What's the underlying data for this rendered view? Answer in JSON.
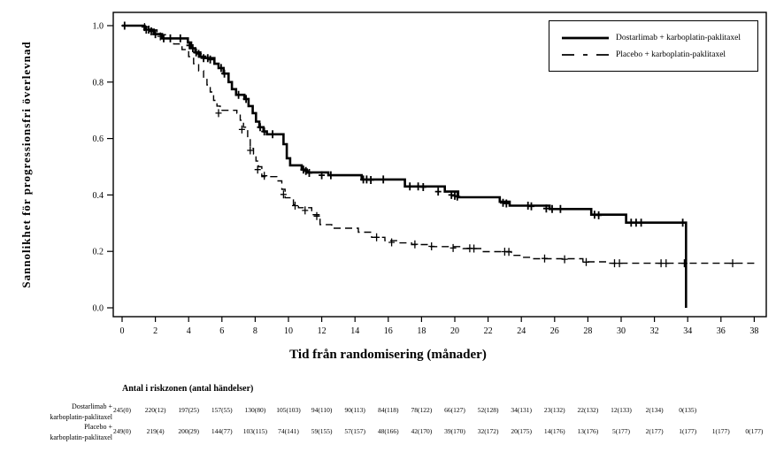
{
  "figure": {
    "y_axis_title": "Sannolikhet för progressionsfri  överlevnad",
    "x_axis_title": "Tid från randomisering  (månader)"
  },
  "legend": {
    "items": [
      {
        "label": "Dostarlimab + karboplatin-paklitaxel",
        "style": "solid"
      },
      {
        "label": "Placebo + karboplatin-paklitaxel",
        "style": "dashed"
      }
    ]
  },
  "colors": {
    "line": "#000000",
    "background": "#ffffff"
  },
  "chart_data": {
    "type": "line",
    "subtype": "kaplan-meier-step",
    "title": "",
    "xlabel": "Tid från randomisering (månader)",
    "ylabel": "Sannolikhet för progressionsfri överlevnad",
    "xlim": [
      0,
      38
    ],
    "ylim": [
      0.0,
      1.0
    ],
    "x_ticks": [
      0,
      2,
      4,
      6,
      8,
      10,
      12,
      14,
      16,
      18,
      20,
      22,
      24,
      26,
      28,
      30,
      32,
      34,
      36,
      38
    ],
    "y_ticks": [
      "0.0",
      "0.2",
      "0.4",
      "0.6",
      "0.8",
      "1.0"
    ],
    "grid": false,
    "legend_position": "top-right",
    "series": [
      {
        "name": "Dostarlimab + karboplatin-paklitaxel",
        "line": "solid",
        "steps": [
          [
            0,
            1.0
          ],
          [
            1.35,
            0.986
          ],
          [
            1.9,
            0.97
          ],
          [
            2.4,
            0.955
          ],
          [
            3.95,
            0.94
          ],
          [
            4.15,
            0.92
          ],
          [
            4.4,
            0.905
          ],
          [
            4.7,
            0.89
          ],
          [
            5.0,
            0.885
          ],
          [
            5.55,
            0.865
          ],
          [
            5.8,
            0.85
          ],
          [
            6.1,
            0.83
          ],
          [
            6.4,
            0.8
          ],
          [
            6.6,
            0.775
          ],
          [
            6.85,
            0.755
          ],
          [
            7.35,
            0.74
          ],
          [
            7.6,
            0.715
          ],
          [
            7.85,
            0.69
          ],
          [
            8.05,
            0.66
          ],
          [
            8.25,
            0.64
          ],
          [
            8.5,
            0.625
          ],
          [
            8.7,
            0.615
          ],
          [
            9.7,
            0.58
          ],
          [
            9.9,
            0.53
          ],
          [
            10.1,
            0.505
          ],
          [
            10.8,
            0.49
          ],
          [
            11.1,
            0.48
          ],
          [
            12.4,
            0.47
          ],
          [
            14.4,
            0.455
          ],
          [
            17.0,
            0.43
          ],
          [
            19.4,
            0.412
          ],
          [
            20.2,
            0.392
          ],
          [
            22.7,
            0.376
          ],
          [
            23.3,
            0.362
          ],
          [
            25.7,
            0.35
          ],
          [
            28.2,
            0.33
          ],
          [
            30.3,
            0.302
          ],
          [
            33.9,
            0.0
          ]
        ],
        "censors": [
          [
            0.15,
            1.0
          ],
          [
            1.45,
            0.986
          ],
          [
            1.6,
            0.986
          ],
          [
            1.75,
            0.98
          ],
          [
            2.0,
            0.97
          ],
          [
            2.5,
            0.955
          ],
          [
            2.9,
            0.955
          ],
          [
            3.5,
            0.955
          ],
          [
            4.05,
            0.93
          ],
          [
            4.25,
            0.92
          ],
          [
            4.45,
            0.905
          ],
          [
            4.6,
            0.9
          ],
          [
            4.9,
            0.885
          ],
          [
            5.15,
            0.885
          ],
          [
            5.3,
            0.88
          ],
          [
            5.95,
            0.85
          ],
          [
            6.15,
            0.83
          ],
          [
            7.0,
            0.755
          ],
          [
            7.45,
            0.74
          ],
          [
            8.3,
            0.64
          ],
          [
            8.55,
            0.625
          ],
          [
            9.05,
            0.615
          ],
          [
            10.9,
            0.49
          ],
          [
            11.05,
            0.485
          ],
          [
            11.25,
            0.478
          ],
          [
            12.0,
            0.47
          ],
          [
            12.55,
            0.47
          ],
          [
            14.5,
            0.455
          ],
          [
            14.7,
            0.455
          ],
          [
            14.95,
            0.453
          ],
          [
            15.7,
            0.455
          ],
          [
            17.3,
            0.43
          ],
          [
            17.8,
            0.43
          ],
          [
            18.1,
            0.428
          ],
          [
            19.0,
            0.412
          ],
          [
            19.8,
            0.4
          ],
          [
            20.0,
            0.397
          ],
          [
            20.15,
            0.394
          ],
          [
            22.9,
            0.372
          ],
          [
            23.1,
            0.37
          ],
          [
            24.4,
            0.362
          ],
          [
            24.6,
            0.36
          ],
          [
            25.5,
            0.352
          ],
          [
            25.85,
            0.35
          ],
          [
            26.35,
            0.35
          ],
          [
            28.4,
            0.33
          ],
          [
            28.65,
            0.328
          ],
          [
            30.6,
            0.302
          ],
          [
            30.9,
            0.302
          ],
          [
            31.2,
            0.302
          ],
          [
            33.7,
            0.302
          ]
        ]
      },
      {
        "name": "Placebo + karboplatin-paklitaxel",
        "line": "dashed",
        "steps": [
          [
            0,
            1.0
          ],
          [
            1.3,
            0.995
          ],
          [
            1.6,
            0.985
          ],
          [
            2.1,
            0.968
          ],
          [
            2.6,
            0.955
          ],
          [
            3.1,
            0.935
          ],
          [
            3.6,
            0.915
          ],
          [
            4.0,
            0.89
          ],
          [
            4.3,
            0.865
          ],
          [
            4.6,
            0.84
          ],
          [
            4.9,
            0.815
          ],
          [
            5.1,
            0.79
          ],
          [
            5.3,
            0.765
          ],
          [
            5.5,
            0.735
          ],
          [
            5.7,
            0.715
          ],
          [
            5.9,
            0.7
          ],
          [
            6.9,
            0.69
          ],
          [
            7.1,
            0.665
          ],
          [
            7.3,
            0.64
          ],
          [
            7.55,
            0.6
          ],
          [
            7.7,
            0.565
          ],
          [
            7.9,
            0.545
          ],
          [
            8.05,
            0.52
          ],
          [
            8.2,
            0.5
          ],
          [
            8.4,
            0.465
          ],
          [
            9.3,
            0.45
          ],
          [
            9.6,
            0.42
          ],
          [
            9.8,
            0.39
          ],
          [
            10.3,
            0.365
          ],
          [
            10.6,
            0.355
          ],
          [
            11.4,
            0.33
          ],
          [
            11.9,
            0.295
          ],
          [
            12.6,
            0.282
          ],
          [
            14.2,
            0.268
          ],
          [
            15.0,
            0.25
          ],
          [
            15.8,
            0.238
          ],
          [
            16.6,
            0.23
          ],
          [
            17.4,
            0.224
          ],
          [
            18.4,
            0.217
          ],
          [
            20.5,
            0.21
          ],
          [
            21.6,
            0.199
          ],
          [
            23.4,
            0.186
          ],
          [
            24.1,
            0.179
          ],
          [
            24.6,
            0.174
          ],
          [
            27.7,
            0.163
          ],
          [
            29.1,
            0.158
          ],
          [
            38.2,
            0.158
          ]
        ],
        "censors": [
          [
            1.35,
            0.995
          ],
          [
            2.3,
            0.962
          ],
          [
            5.8,
            0.69
          ],
          [
            7.2,
            0.632
          ],
          [
            7.7,
            0.558
          ],
          [
            8.15,
            0.49
          ],
          [
            8.55,
            0.468
          ],
          [
            9.7,
            0.402
          ],
          [
            10.4,
            0.362
          ],
          [
            11.0,
            0.345
          ],
          [
            11.7,
            0.325
          ],
          [
            15.3,
            0.25
          ],
          [
            16.2,
            0.232
          ],
          [
            17.6,
            0.225
          ],
          [
            18.6,
            0.218
          ],
          [
            19.9,
            0.212
          ],
          [
            20.9,
            0.211
          ],
          [
            21.15,
            0.21
          ],
          [
            23.0,
            0.199
          ],
          [
            23.25,
            0.198
          ],
          [
            25.4,
            0.175
          ],
          [
            26.6,
            0.172
          ],
          [
            27.9,
            0.162
          ],
          [
            29.6,
            0.158
          ],
          [
            29.9,
            0.158
          ],
          [
            32.4,
            0.158
          ],
          [
            32.7,
            0.158
          ],
          [
            33.8,
            0.158
          ],
          [
            36.7,
            0.158
          ]
        ]
      }
    ]
  },
  "risk_table": {
    "title": "Antal i riskzonen (antal händelser)",
    "rows": [
      {
        "label_lines": [
          "Dostarlimab +",
          "karboplatin-paklitaxel"
        ],
        "start_month": 0,
        "month_step": 2,
        "values": [
          "245(0)",
          "220(12)",
          "197(25)",
          "157(55)",
          "130(80)",
          "105(103)",
          "94(110)",
          "90(113)",
          "84(118)",
          "78(122)",
          "66(127)",
          "52(128)",
          "34(131)",
          "23(132)",
          "22(132)",
          "12(133)",
          "2(134)",
          "0(135)"
        ]
      },
      {
        "label_lines": [
          "Placebo +",
          "karboplatin-paklitaxel"
        ],
        "start_month": 0,
        "month_step": 2,
        "values": [
          "249(0)",
          "219(4)",
          "200(29)",
          "144(77)",
          "103(115)",
          "74(141)",
          "59(155)",
          "57(157)",
          "48(166)",
          "42(170)",
          "39(170)",
          "32(172)",
          "20(175)",
          "14(176)",
          "13(176)",
          "5(177)",
          "2(177)",
          "1(177)",
          "1(177)",
          "0(177)"
        ]
      }
    ]
  }
}
